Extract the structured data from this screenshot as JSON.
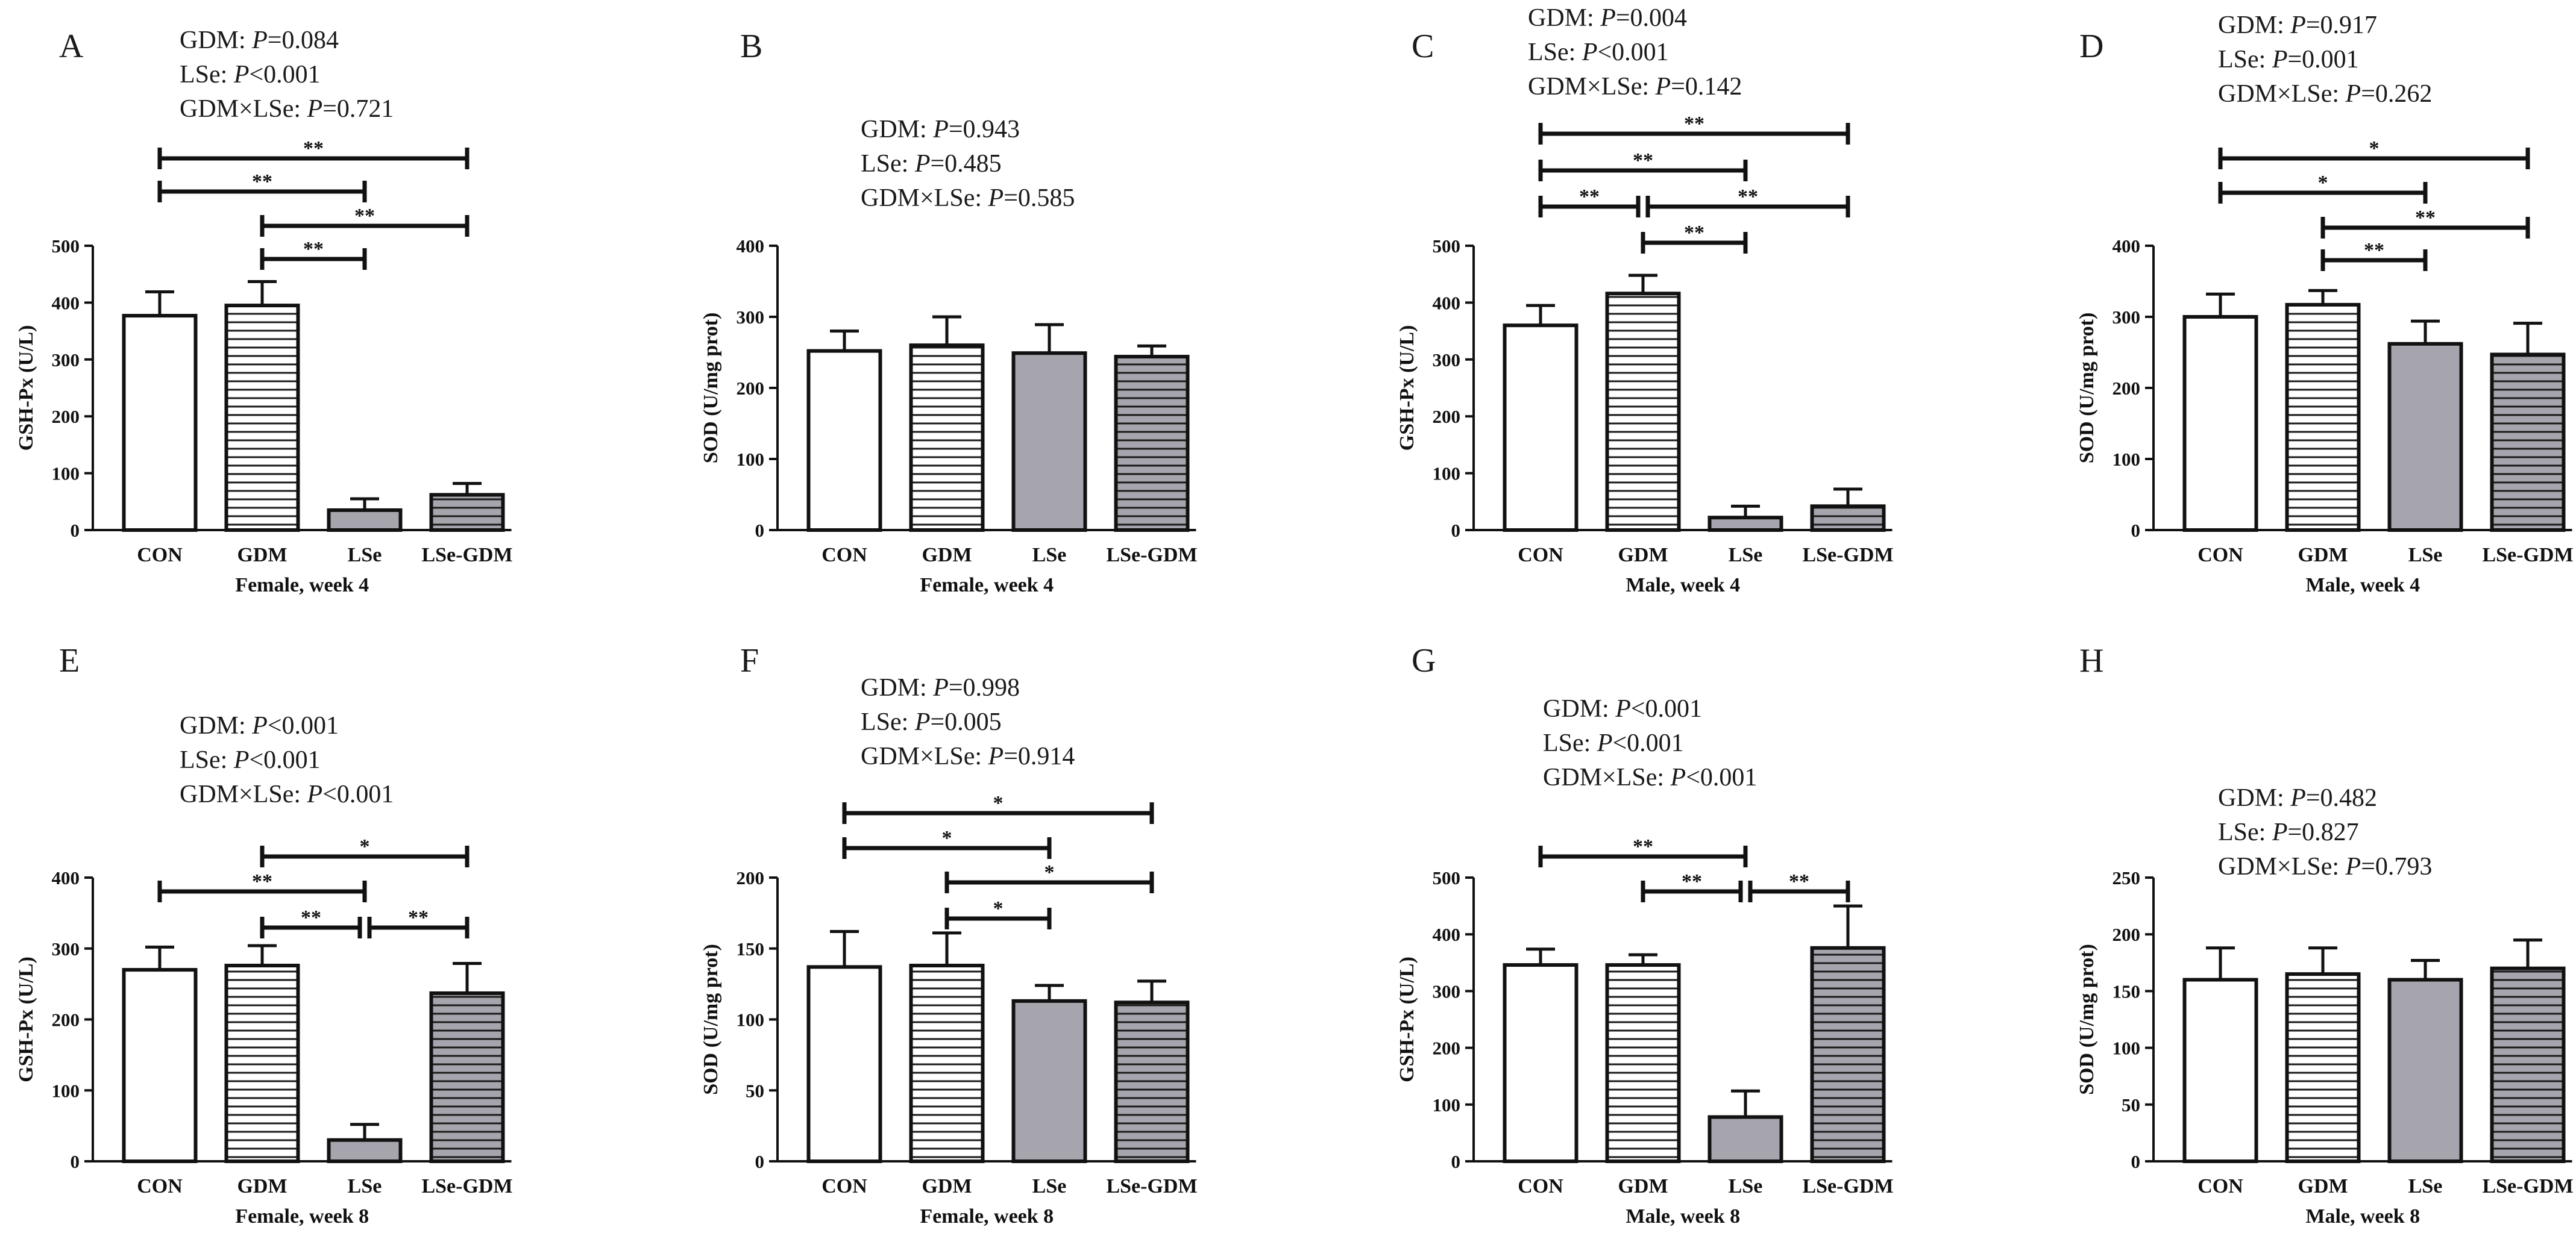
{
  "colors": {
    "axis": "#111111",
    "white_fill": "#ffffff",
    "gray_fill": "#a6a5ad",
    "hatch_line": "#1a1a1a",
    "hatch_gray_bg": "#a6a5ad"
  },
  "chart_data": [
    {
      "type": "bar",
      "panel": "A",
      "categories": [
        "CON",
        "GDM",
        "LSe",
        "LSe-GDM"
      ],
      "values": [
        377,
        395,
        35,
        62
      ],
      "errors": [
        42,
        42,
        20,
        20
      ],
      "patterns": [
        "white",
        "hatch",
        "gray",
        "gray-hatch"
      ],
      "ylim": [
        0,
        500
      ],
      "yticks": [
        0,
        100,
        200,
        300,
        400,
        500
      ],
      "ylabel": "GSH-Px (U/L)",
      "xlabel": "Female, week 4",
      "stats": [
        {
          "prefix": "GDM: ",
          "p": "P",
          "rest": "=0.084"
        },
        {
          "prefix": "LSe: ",
          "p": "P",
          "rest": "<0.001"
        },
        {
          "prefix": "GDM×LSe: ",
          "p": "P",
          "rest": "=0.721"
        }
      ],
      "brackets": [
        {
          "from": 0,
          "to": 3,
          "label": "**"
        },
        {
          "from": 0,
          "to": 2,
          "label": "**"
        },
        {
          "from": 1,
          "to": 3,
          "label": "**"
        },
        {
          "from": 1,
          "to": 2,
          "label": "**"
        }
      ]
    },
    {
      "type": "bar",
      "panel": "B",
      "categories": [
        "CON",
        "GDM",
        "LSe",
        "LSe-GDM"
      ],
      "values": [
        252,
        260,
        249,
        244
      ],
      "errors": [
        28,
        40,
        40,
        15
      ],
      "patterns": [
        "white",
        "hatch",
        "gray",
        "gray-hatch"
      ],
      "ylim": [
        0,
        400
      ],
      "yticks": [
        0,
        100,
        200,
        300,
        400
      ],
      "ylabel": "SOD (U/mg prot)",
      "xlabel": "Female, week 4",
      "stats": [
        {
          "prefix": "GDM: ",
          "p": "P",
          "rest": "=0.943"
        },
        {
          "prefix": "LSe: ",
          "p": "P",
          "rest": "=0.485"
        },
        {
          "prefix": "GDM×LSe: ",
          "p": "P",
          "rest": "=0.585"
        }
      ],
      "brackets": []
    },
    {
      "type": "bar",
      "panel": "C",
      "categories": [
        "CON",
        "GDM",
        "LSe",
        "LSe-GDM"
      ],
      "values": [
        360,
        416,
        22,
        42
      ],
      "errors": [
        35,
        32,
        20,
        30
      ],
      "patterns": [
        "white",
        "hatch",
        "gray",
        "gray-hatch"
      ],
      "ylim": [
        0,
        500
      ],
      "yticks": [
        0,
        100,
        200,
        300,
        400,
        500
      ],
      "ylabel": "GSH-Px (U/L)",
      "xlabel": "Male, week 4",
      "stats": [
        {
          "prefix": "GDM: ",
          "p": "P",
          "rest": "=0.004"
        },
        {
          "prefix": "LSe: ",
          "p": "P",
          "rest": "<0.001"
        },
        {
          "prefix": "GDM×LSe: ",
          "p": "P",
          "rest": "=0.142"
        }
      ],
      "brackets": [
        {
          "from": 0,
          "to": 3,
          "label": "**"
        },
        {
          "from": 0,
          "to": 2,
          "label": "**"
        },
        {
          "from": 0,
          "to": 1,
          "label": "**"
        },
        {
          "from": 1,
          "to": 3,
          "label": "**"
        },
        {
          "from": 1,
          "to": 2,
          "label": "**"
        }
      ]
    },
    {
      "type": "bar",
      "panel": "D",
      "categories": [
        "CON",
        "GDM",
        "LSe",
        "LSe-GDM"
      ],
      "values": [
        300,
        317,
        262,
        247
      ],
      "errors": [
        32,
        20,
        32,
        44
      ],
      "patterns": [
        "white",
        "hatch",
        "gray",
        "gray-hatch"
      ],
      "ylim": [
        0,
        400
      ],
      "yticks": [
        0,
        100,
        200,
        300,
        400
      ],
      "ylabel": "SOD (U/mg prot)",
      "xlabel": "Male, week 4",
      "stats": [
        {
          "prefix": "GDM: ",
          "p": "P",
          "rest": "=0.917"
        },
        {
          "prefix": "LSe: ",
          "p": "P",
          "rest": "=0.001"
        },
        {
          "prefix": "GDM×LSe: ",
          "p": "P",
          "rest": "=0.262"
        }
      ],
      "brackets": [
        {
          "from": 0,
          "to": 3,
          "label": "*"
        },
        {
          "from": 0,
          "to": 2,
          "label": "*"
        },
        {
          "from": 1,
          "to": 3,
          "label": "**"
        },
        {
          "from": 1,
          "to": 2,
          "label": "**"
        }
      ]
    },
    {
      "type": "bar",
      "panel": "E",
      "categories": [
        "CON",
        "GDM",
        "LSe",
        "LSe-GDM"
      ],
      "values": [
        270,
        276,
        30,
        237
      ],
      "errors": [
        32,
        28,
        22,
        42
      ],
      "patterns": [
        "white",
        "hatch",
        "gray",
        "gray-hatch"
      ],
      "ylim": [
        0,
        400
      ],
      "yticks": [
        0,
        100,
        200,
        300,
        400
      ],
      "ylabel": "GSH-Px (U/L)",
      "xlabel": "Female, week 8",
      "stats": [
        {
          "prefix": "GDM: ",
          "p": "P",
          "rest": "<0.001"
        },
        {
          "prefix": "LSe: ",
          "p": "P",
          "rest": "<0.001"
        },
        {
          "prefix": "GDM×LSe: ",
          "p": "P",
          "rest": "<0.001"
        }
      ],
      "brackets": [
        {
          "from": 1,
          "to": 3,
          "label": "*"
        },
        {
          "from": 0,
          "to": 2,
          "label": "**"
        },
        {
          "from": 1,
          "to": 2,
          "label": "**"
        },
        {
          "from": 2,
          "to": 3,
          "label": "**"
        }
      ]
    },
    {
      "type": "bar",
      "panel": "F",
      "categories": [
        "CON",
        "GDM",
        "LSe",
        "LSe-GDM"
      ],
      "values": [
        137,
        138,
        113,
        112
      ],
      "errors": [
        25,
        23,
        11,
        15
      ],
      "patterns": [
        "white",
        "hatch",
        "gray",
        "gray-hatch"
      ],
      "ylim": [
        0,
        200
      ],
      "yticks": [
        0,
        50,
        100,
        150,
        200
      ],
      "ylabel": "SOD (U/mg prot)",
      "xlabel": "Female, week 8",
      "stats": [
        {
          "prefix": "GDM: ",
          "p": "P",
          "rest": "=0.998"
        },
        {
          "prefix": "LSe: ",
          "p": "P",
          "rest": "=0.005"
        },
        {
          "prefix": "GDM×LSe: ",
          "p": "P",
          "rest": "=0.914"
        }
      ],
      "brackets": [
        {
          "from": 0,
          "to": 3,
          "label": "*"
        },
        {
          "from": 0,
          "to": 2,
          "label": "*"
        },
        {
          "from": 1,
          "to": 3,
          "label": "*"
        },
        {
          "from": 1,
          "to": 2,
          "label": "*"
        }
      ]
    },
    {
      "type": "bar",
      "panel": "G",
      "categories": [
        "CON",
        "GDM",
        "LSe",
        "LSe-GDM"
      ],
      "values": [
        346,
        346,
        78,
        376
      ],
      "errors": [
        28,
        18,
        46,
        74
      ],
      "patterns": [
        "white",
        "hatch",
        "gray",
        "gray-hatch"
      ],
      "ylim": [
        0,
        500
      ],
      "yticks": [
        0,
        100,
        200,
        300,
        400,
        500
      ],
      "ylabel": "GSH-Px (U/L)",
      "xlabel": "Male, week 8",
      "stats": [
        {
          "prefix": "GDM: ",
          "p": "P",
          "rest": "<0.001"
        },
        {
          "prefix": "LSe: ",
          "p": "P",
          "rest": "<0.001"
        },
        {
          "prefix": "GDM×LSe: ",
          "p": "P",
          "rest": "<0.001"
        }
      ],
      "brackets": [
        {
          "from": 0,
          "to": 2,
          "label": "**"
        },
        {
          "from": 1,
          "to": 2,
          "label": "**"
        },
        {
          "from": 2,
          "to": 3,
          "label": "**"
        }
      ]
    },
    {
      "type": "bar",
      "panel": "H",
      "categories": [
        "CON",
        "GDM",
        "LSe",
        "LSe-GDM"
      ],
      "values": [
        160,
        165,
        160,
        170
      ],
      "errors": [
        28,
        23,
        17,
        25
      ],
      "patterns": [
        "white",
        "hatch",
        "gray",
        "gray-hatch"
      ],
      "ylim": [
        0,
        250
      ],
      "yticks": [
        0,
        50,
        100,
        150,
        200,
        250
      ],
      "ylabel": "SOD (U/mg prot)",
      "xlabel": "Male, week 8",
      "stats": [
        {
          "prefix": "GDM: ",
          "p": "P",
          "rest": "=0.482"
        },
        {
          "prefix": "LSe: ",
          "p": "P",
          "rest": "=0.827"
        },
        {
          "prefix": "GDM×LSe: ",
          "p": "P",
          "rest": "=0.793"
        }
      ],
      "brackets": []
    }
  ]
}
